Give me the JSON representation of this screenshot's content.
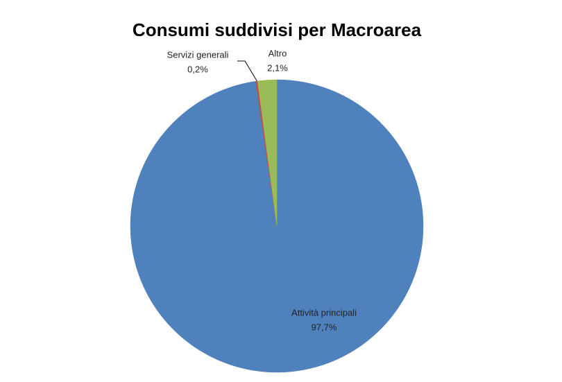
{
  "chart_data": {
    "type": "pie",
    "title": "Consumi suddivisi per Macroarea",
    "categories": [
      "Attività principali",
      "Servizi generali",
      "Altro"
    ],
    "values": [
      97.7,
      0.2,
      2.1
    ],
    "value_labels": [
      "97,7%",
      "0,2%",
      "2,1%"
    ],
    "colors": [
      "#4f81bd",
      "#c0504d",
      "#9bbb59"
    ]
  }
}
